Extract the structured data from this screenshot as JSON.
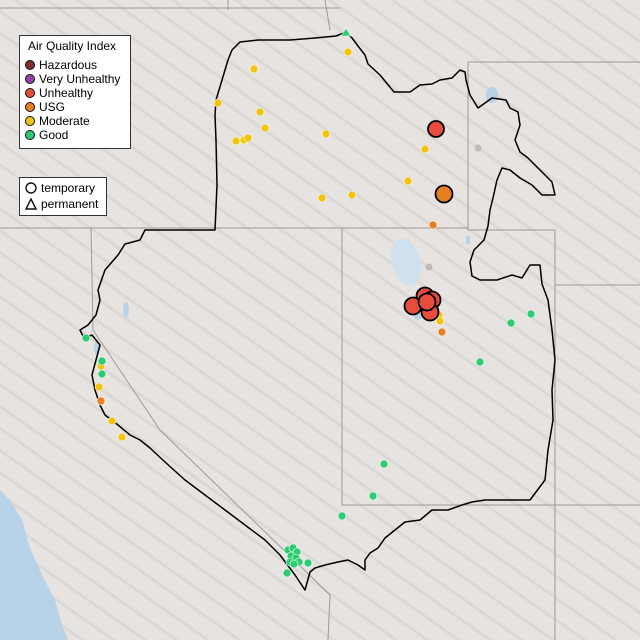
{
  "legend": {
    "title": "Air Quality Index",
    "categories": [
      {
        "label": "Hazardous",
        "color": "#7e2f2f"
      },
      {
        "label": "Very Unhealthy",
        "color": "#8e44ad"
      },
      {
        "label": "Unhealthy",
        "color": "#e74c3c"
      },
      {
        "label": "USG",
        "color": "#e67e22"
      },
      {
        "label": "Moderate",
        "color": "#f1c40f"
      },
      {
        "label": "Good",
        "color": "#2ecc71"
      }
    ],
    "monitor_types": [
      {
        "label": "temporary",
        "shape": "circle-icon"
      },
      {
        "label": "permanent",
        "shape": "triangle-icon"
      }
    ]
  },
  "map": {
    "basemap_color": "#e6e3e1",
    "boundary_color": "#000000",
    "water_color": "#b8d3e8",
    "no_data_color": "#bdbdbd"
  }
}
